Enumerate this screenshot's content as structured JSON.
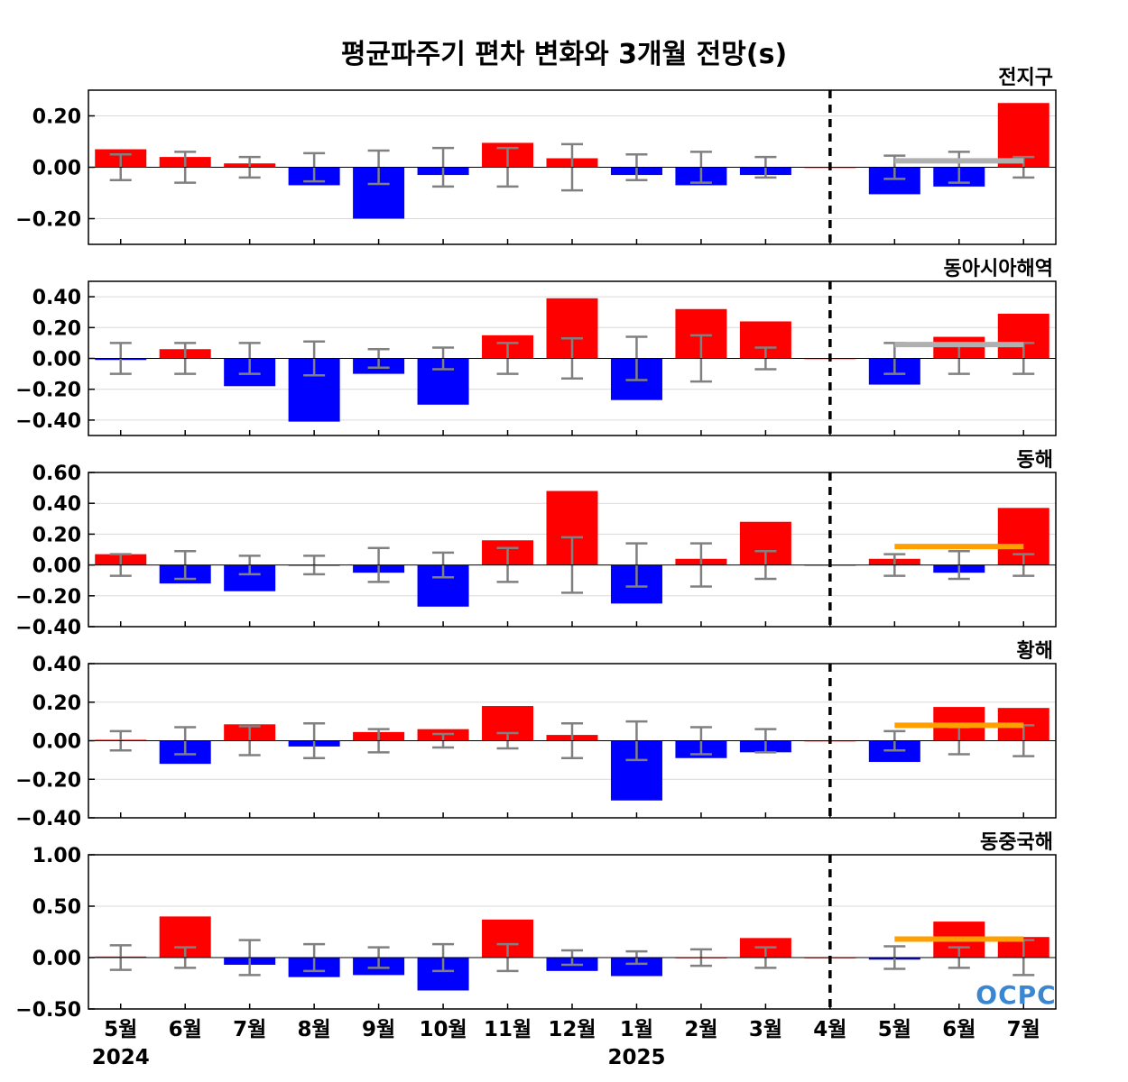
{
  "title": "평균파주기 편차 변화와 3개월 전망(s)",
  "logo_text": "OCPC",
  "x_ticks": [
    "5월",
    "6월",
    "7월",
    "8월",
    "9월",
    "10월",
    "11월",
    "12월",
    "1월",
    "2월",
    "3월",
    "4월",
    "5월",
    "6월",
    "7월"
  ],
  "year_labels": [
    {
      "text": "2024",
      "at_index": 0
    },
    {
      "text": "2025",
      "at_index": 8
    }
  ],
  "colors": {
    "positive": "#ff0000",
    "negative": "#0000ff",
    "error_bar": "#808080",
    "forecast_gray": "#b0b0b0",
    "forecast_orange": "#ffa000",
    "grid": "#d9d9d9"
  },
  "chart_data": [
    {
      "type": "bar",
      "title": "전지구",
      "categories": [
        "5월",
        "6월",
        "7월",
        "8월",
        "9월",
        "10월",
        "11월",
        "12월",
        "1월",
        "2월",
        "3월",
        "4월",
        "5월",
        "6월",
        "7월"
      ],
      "values": [
        0.07,
        0.04,
        0.015,
        -0.07,
        -0.2,
        -0.03,
        0.095,
        0.035,
        -0.03,
        -0.07,
        -0.03,
        0.0,
        -0.105,
        -0.075,
        0.25
      ],
      "error_bar": [
        0.05,
        0.06,
        0.04,
        0.055,
        0.065,
        0.075,
        0.075,
        0.09,
        0.05,
        0.06,
        0.04,
        0.0,
        0.045,
        0.06,
        0.04
      ],
      "forecast_line": {
        "value": 0.025,
        "from": "5월",
        "to": "7월",
        "color": "gray"
      },
      "ylim": [
        -0.3,
        0.3
      ],
      "yticks": [
        -0.2,
        0.0,
        0.2
      ],
      "ytick_labels": [
        "−0.20",
        "0.00",
        "0.20"
      ],
      "grid": true,
      "vline_at": "4월"
    },
    {
      "type": "bar",
      "title": "동아시아해역",
      "categories": [
        "5월",
        "6월",
        "7월",
        "8월",
        "9월",
        "10월",
        "11월",
        "12월",
        "1월",
        "2월",
        "3월",
        "4월",
        "5월",
        "6월",
        "7월"
      ],
      "values": [
        -0.01,
        0.06,
        -0.18,
        -0.41,
        -0.1,
        -0.3,
        0.15,
        0.39,
        -0.27,
        0.32,
        0.24,
        0.0,
        -0.17,
        0.14,
        0.29
      ],
      "error_bar": [
        0.1,
        0.1,
        0.1,
        0.11,
        0.06,
        0.07,
        0.1,
        0.13,
        0.14,
        0.15,
        0.07,
        0.0,
        0.1,
        0.1,
        0.1
      ],
      "forecast_line": {
        "value": 0.09,
        "from": "5월",
        "to": "7월",
        "color": "gray"
      },
      "ylim": [
        -0.5,
        0.5
      ],
      "yticks": [
        -0.4,
        -0.2,
        0.0,
        0.2,
        0.4
      ],
      "ytick_labels": [
        "−0.40",
        "−0.20",
        "0.00",
        "0.20",
        "0.40"
      ],
      "grid": true,
      "vline_at": "4월"
    },
    {
      "type": "bar",
      "title": "동해",
      "categories": [
        "5월",
        "6월",
        "7월",
        "8월",
        "9월",
        "10월",
        "11월",
        "12월",
        "1월",
        "2월",
        "3월",
        "4월",
        "5월",
        "6월",
        "7월"
      ],
      "values": [
        0.07,
        -0.12,
        -0.17,
        -0.005,
        -0.05,
        -0.27,
        0.16,
        0.48,
        -0.25,
        0.04,
        0.28,
        0.0,
        0.04,
        -0.05,
        0.37
      ],
      "error_bar": [
        0.07,
        0.09,
        0.06,
        0.06,
        0.11,
        0.08,
        0.11,
        0.18,
        0.14,
        0.14,
        0.09,
        0.0,
        0.07,
        0.09,
        0.07
      ],
      "forecast_line": {
        "value": 0.12,
        "from": "5월",
        "to": "7월",
        "color": "orange"
      },
      "ylim": [
        -0.4,
        0.6
      ],
      "yticks": [
        -0.4,
        -0.2,
        0.0,
        0.2,
        0.4,
        0.6
      ],
      "ytick_labels": [
        "−0.40",
        "−0.20",
        "0.00",
        "0.20",
        "0.40",
        "0.60"
      ],
      "grid": true,
      "vline_at": "4월"
    },
    {
      "type": "bar",
      "title": "황해",
      "categories": [
        "5월",
        "6월",
        "7월",
        "8월",
        "9월",
        "10월",
        "11월",
        "12월",
        "1월",
        "2월",
        "3월",
        "4월",
        "5월",
        "6월",
        "7월"
      ],
      "values": [
        0.005,
        -0.12,
        0.085,
        -0.03,
        0.045,
        0.06,
        0.18,
        0.03,
        -0.31,
        -0.09,
        -0.06,
        0.0,
        -0.11,
        0.175,
        0.17
      ],
      "error_bar": [
        0.05,
        0.07,
        0.075,
        0.09,
        0.06,
        0.035,
        0.04,
        0.09,
        0.1,
        0.07,
        0.06,
        0.0,
        0.05,
        0.07,
        0.08
      ],
      "forecast_line": {
        "value": 0.08,
        "from": "5월",
        "to": "7월",
        "color": "orange"
      },
      "ylim": [
        -0.4,
        0.4
      ],
      "yticks": [
        -0.4,
        -0.2,
        0.0,
        0.2,
        0.4
      ],
      "ytick_labels": [
        "−0.40",
        "−0.20",
        "0.00",
        "0.20",
        "0.40"
      ],
      "grid": true,
      "vline_at": "4월"
    },
    {
      "type": "bar",
      "title": "동중국해",
      "categories": [
        "5월",
        "6월",
        "7월",
        "8월",
        "9월",
        "10월",
        "11월",
        "12월",
        "1월",
        "2월",
        "3월",
        "4월",
        "5월",
        "6월",
        "7월"
      ],
      "values": [
        0.01,
        0.4,
        -0.07,
        -0.19,
        -0.17,
        -0.32,
        0.37,
        -0.13,
        -0.18,
        0.0,
        0.19,
        0.0,
        -0.02,
        0.35,
        0.2
      ],
      "error_bar": [
        0.12,
        0.1,
        0.17,
        0.13,
        0.1,
        0.13,
        0.13,
        0.07,
        0.06,
        0.08,
        0.1,
        0.0,
        0.11,
        0.1,
        0.17
      ],
      "forecast_line": {
        "value": 0.18,
        "from": "5월",
        "to": "7월",
        "color": "orange"
      },
      "ylim": [
        -0.5,
        1.0
      ],
      "yticks": [
        -0.5,
        0.0,
        0.5,
        1.0
      ],
      "ytick_labels": [
        "−0.50",
        "0.00",
        "0.50",
        "1.00"
      ],
      "grid": true,
      "vline_at": "4월"
    }
  ]
}
